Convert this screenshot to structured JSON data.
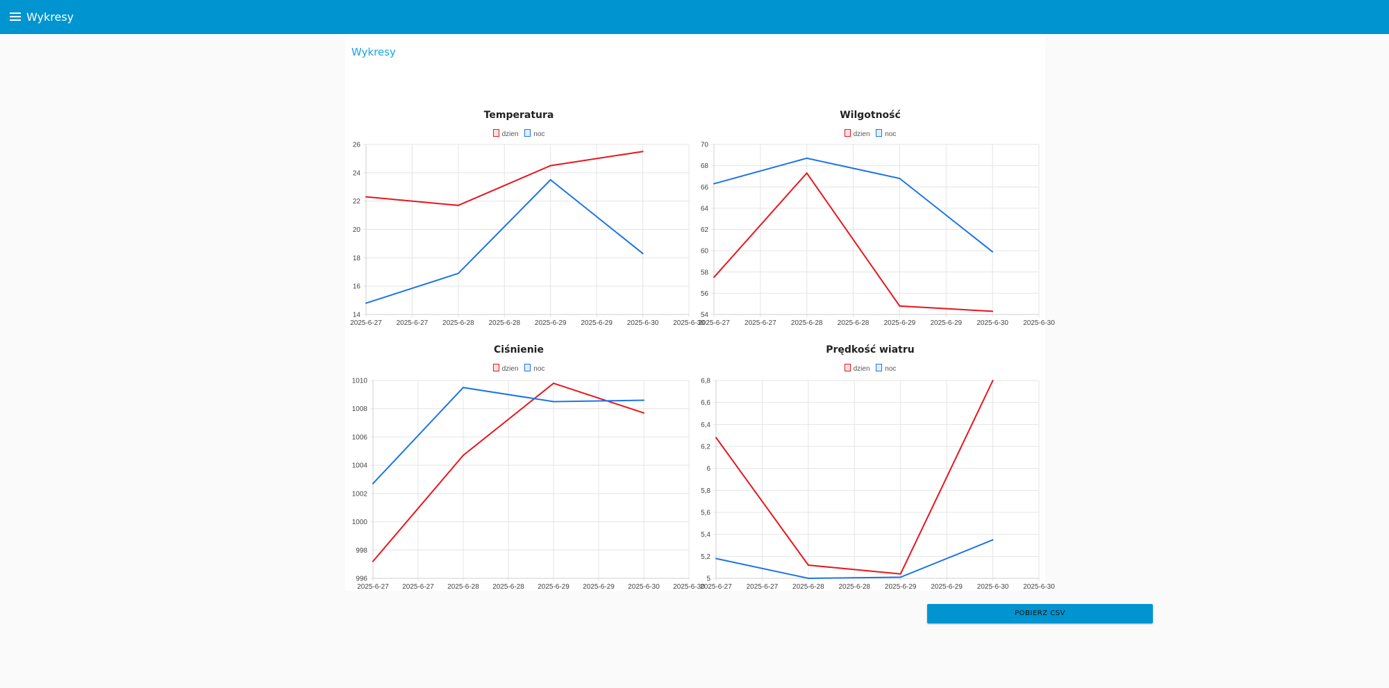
{
  "app": {
    "title": "Wykresy",
    "page_title": "Wykresy"
  },
  "colors": {
    "dzien": "#e8141c",
    "noc": "#1a73e8",
    "accent": "#0094d1"
  },
  "legend": {
    "dzien": "dzien",
    "noc": "noc"
  },
  "buttons": {
    "download_csv": "POBIERZ CSV"
  },
  "chart_data": [
    {
      "type": "line",
      "title": "Temperatura",
      "categories": [
        "2025-6-27",
        "2025-6-27",
        "2025-6-28",
        "2025-6-28",
        "2025-6-29",
        "2025-6-29",
        "2025-6-30",
        "2025-6-30"
      ],
      "ylim": [
        14,
        26
      ],
      "yticks": [
        "14",
        "16",
        "18",
        "20",
        "22",
        "24",
        "26"
      ],
      "series": [
        {
          "name": "dzien",
          "values": [
            22.3,
            null,
            21.7,
            null,
            24.5,
            null,
            25.5,
            null
          ]
        },
        {
          "name": "noc",
          "values": [
            14.8,
            null,
            16.9,
            null,
            23.5,
            null,
            18.3,
            null
          ]
        }
      ]
    },
    {
      "type": "line",
      "title": "Wilgotność",
      "categories": [
        "2025-6-27",
        "2025-6-27",
        "2025-6-28",
        "2025-6-28",
        "2025-6-29",
        "2025-6-29",
        "2025-6-30",
        "2025-6-30"
      ],
      "ylim": [
        54,
        70
      ],
      "yticks": [
        "54",
        "56",
        "58",
        "60",
        "62",
        "64",
        "66",
        "68",
        "70"
      ],
      "series": [
        {
          "name": "dzien",
          "values": [
            57.5,
            null,
            67.3,
            null,
            54.8,
            null,
            54.3,
            null
          ]
        },
        {
          "name": "noc",
          "values": [
            66.3,
            null,
            68.7,
            null,
            66.8,
            null,
            59.9,
            null
          ]
        }
      ]
    },
    {
      "type": "line",
      "title": "Ciśnienie",
      "categories": [
        "2025-6-27",
        "2025-6-27",
        "2025-6-28",
        "2025-6-28",
        "2025-6-29",
        "2025-6-29",
        "2025-6-30",
        "2025-6-30"
      ],
      "ylim": [
        996,
        1010
      ],
      "yticks": [
        "996",
        "998",
        "1000",
        "1002",
        "1004",
        "1006",
        "1008",
        "1010"
      ],
      "series": [
        {
          "name": "dzien",
          "values": [
            997.2,
            null,
            1004.7,
            null,
            1009.8,
            null,
            1007.7,
            null
          ]
        },
        {
          "name": "noc",
          "values": [
            1002.7,
            null,
            1009.5,
            null,
            1008.5,
            null,
            1008.6,
            null
          ]
        }
      ]
    },
    {
      "type": "line",
      "title": "Prędkość wiatru",
      "categories": [
        "2025-6-27",
        "2025-6-27",
        "2025-6-28",
        "2025-6-28",
        "2025-6-29",
        "2025-6-29",
        "2025-6-30",
        "2025-6-30"
      ],
      "ylim": [
        5,
        6.8
      ],
      "yticks": [
        "5",
        "5,2",
        "5,4",
        "5,6",
        "5,8",
        "6",
        "6,2",
        "6,4",
        "6,6",
        "6,8"
      ],
      "series": [
        {
          "name": "dzien",
          "values": [
            6.28,
            null,
            5.12,
            null,
            5.04,
            null,
            6.8,
            null
          ]
        },
        {
          "name": "noc",
          "values": [
            5.18,
            null,
            5.0,
            null,
            5.01,
            null,
            5.35,
            null
          ]
        }
      ]
    }
  ]
}
